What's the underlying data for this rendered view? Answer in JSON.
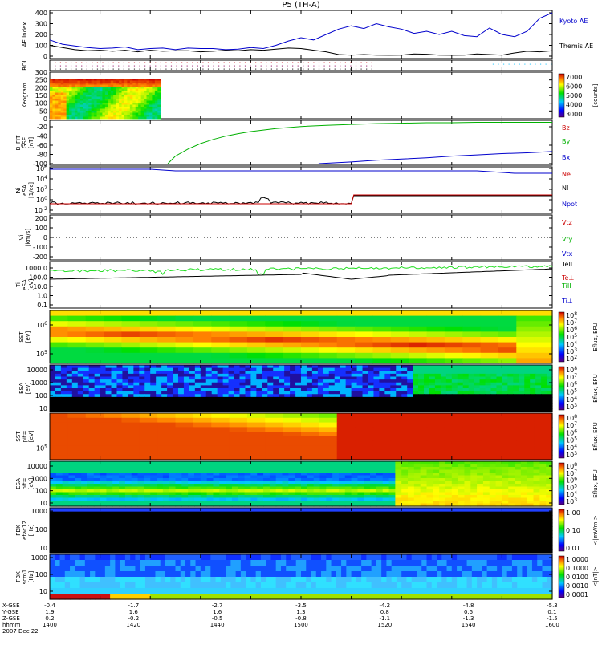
{
  "title": "P5 (TH-A)",
  "chart_data": [
    {
      "id": "ae",
      "type": "line",
      "ylabel": "AE Index",
      "yticks": [
        "400",
        "300",
        "200",
        "100",
        "0"
      ],
      "ylim": [
        0,
        400
      ],
      "series": [
        {
          "name": "Kyoto AE",
          "color": "#0000cc",
          "x": [
            1400,
            1405,
            1410,
            1415,
            1420,
            1425,
            1430,
            1435,
            1440,
            1445,
            1450,
            1455,
            1460,
            1465,
            1470,
            1475,
            1480,
            1485,
            1490,
            1495,
            1500,
            1505,
            1510,
            1515,
            1520,
            1525,
            1530,
            1535,
            1540,
            1545,
            1550,
            1555,
            1560,
            1565,
            1570,
            1575,
            1580,
            1585,
            1590,
            1595,
            1600
          ],
          "values": [
            150,
            110,
            95,
            80,
            70,
            75,
            85,
            60,
            70,
            75,
            60,
            75,
            70,
            70,
            60,
            65,
            80,
            70,
            100,
            140,
            170,
            150,
            200,
            250,
            280,
            255,
            300,
            270,
            250,
            210,
            230,
            200,
            230,
            190,
            180,
            260,
            200,
            180,
            230,
            350,
            400
          ]
        },
        {
          "name": "Themis AE",
          "color": "#000000",
          "x": [
            1400,
            1405,
            1410,
            1415,
            1420,
            1425,
            1430,
            1435,
            1440,
            1445,
            1450,
            1455,
            1460,
            1465,
            1470,
            1475,
            1480,
            1485,
            1490,
            1495,
            1500,
            1505,
            1510,
            1515,
            1520,
            1525,
            1530,
            1535,
            1540,
            1545,
            1550,
            1555,
            1560,
            1565,
            1570,
            1575,
            1580,
            1585,
            1590,
            1595,
            1600
          ],
          "values": [
            100,
            80,
            60,
            50,
            55,
            45,
            55,
            40,
            55,
            45,
            50,
            50,
            40,
            45,
            55,
            50,
            60,
            55,
            65,
            75,
            70,
            55,
            40,
            15,
            10,
            15,
            10,
            8,
            10,
            20,
            18,
            10,
            8,
            10,
            20,
            15,
            10,
            30,
            45,
            40,
            50
          ]
        }
      ]
    },
    {
      "id": "roi",
      "type": "heatmap",
      "ylabel": "ROI"
    },
    {
      "id": "keogram",
      "type": "heatmap",
      "ylabel": "Keogram",
      "yticks": [
        "300",
        "250",
        "200",
        "150",
        "100",
        "50",
        "0"
      ],
      "colorbar": {
        "label": "[counts]",
        "ticks": [
          "7000",
          "6000",
          "5000",
          "4000",
          "3000"
        ]
      }
    },
    {
      "id": "bfit",
      "type": "line",
      "ylabel": "B_FIT\n GSE\n [nT]",
      "yticks": [
        "-20",
        "-40",
        "-60",
        "-80",
        "-100"
      ],
      "ylim": [
        -100,
        0
      ],
      "series": [
        {
          "name": "Bz",
          "color": "#cc0000",
          "x": [],
          "values": []
        },
        {
          "name": "By",
          "color": "#00b000",
          "x": [
            1447,
            1450,
            1455,
            1460,
            1465,
            1470,
            1475,
            1480,
            1490,
            1500,
            1510,
            1520,
            1530,
            1540,
            1550,
            1560,
            1570,
            1580,
            1590,
            1600
          ],
          "values": [
            -100,
            -82,
            -65,
            -52,
            -42,
            -34,
            -28,
            -23,
            -16,
            -11,
            -8,
            -6,
            -4,
            -3,
            -2,
            -2,
            -1,
            -1,
            -1,
            -1
          ]
        },
        {
          "name": "Bx",
          "color": "#0000cc",
          "x": [
            1507,
            1520,
            1530,
            1540,
            1550,
            1560,
            1570,
            1580,
            1590,
            1600
          ],
          "values": [
            -100,
            -96,
            -92,
            -89,
            -86,
            -82,
            -79,
            -76,
            -74,
            -71
          ]
        }
      ]
    },
    {
      "id": "ni",
      "type": "line",
      "ylabel": "Ni\n eSA\n [1/cc]",
      "yticks": [
        "10^6",
        "10^4",
        "10^2",
        "10^0",
        "10^-2"
      ]
    },
    {
      "id": "vi",
      "type": "line",
      "ylabel": "Vi\n [km/s]",
      "yticks": [
        "200",
        "100",
        "0",
        "-100",
        "-200"
      ]
    },
    {
      "id": "ti",
      "type": "line",
      "ylabel": "Ti\n eSA\n [eV]",
      "yticks": [
        "1000.0",
        "100.0",
        "10.0",
        "1.0",
        "0.1"
      ]
    },
    {
      "id": "sst1",
      "type": "heatmap",
      "ylabel": "SST\n [eV]",
      "yticks": [
        "10^6",
        "10^5"
      ],
      "colorbar": {
        "label": "Eflux, EFU",
        "ticks": [
          "10^8",
          "10^7",
          "10^6",
          "10^5",
          "10^4",
          "10^3",
          "10^2"
        ]
      }
    },
    {
      "id": "esa1",
      "type": "heatmap",
      "ylabel": "ESA\n [eV]",
      "yticks": [
        "10000",
        "1000",
        "100",
        "10"
      ],
      "colorbar": {
        "label": "Eflux, EFU",
        "ticks": [
          "10^8",
          "10^7",
          "10^6",
          "10^5",
          "10^4",
          "10^3"
        ]
      }
    },
    {
      "id": "sst2",
      "type": "heatmap",
      "ylabel": "SST\n pit=\n [eV]",
      "yticks": [
        "10^5"
      ],
      "colorbar": {
        "label": "Eflux, EFU",
        "ticks": [
          "10^8",
          "10^7",
          "10^6",
          "10^5",
          "10^4",
          "10^3"
        ]
      }
    },
    {
      "id": "esa2",
      "type": "heatmap",
      "ylabel": "ESA\n pit=\n [eV]",
      "yticks": [
        "10000",
        "1000",
        "100",
        "10"
      ],
      "colorbar": {
        "label": "Eflux, EFU",
        "ticks": [
          "10^8",
          "10^7",
          "10^6",
          "10^5",
          "10^4",
          "10^3"
        ]
      }
    },
    {
      "id": "fbk1",
      "type": "heatmap",
      "ylabel": "FBK\n efac12\n [Hz]",
      "yticks": [
        "1000",
        "100",
        "10"
      ],
      "colorbar": {
        "label": "<|mV/m|>",
        "ticks": [
          "1.00",
          "0.10",
          "0.01"
        ]
      }
    },
    {
      "id": "fbk2",
      "type": "heatmap",
      "ylabel": "FBK\n scm1\n [Hz]",
      "yticks": [
        "1000",
        "100",
        "10"
      ],
      "colorbar": {
        "label": "<|nT|>",
        "ticks": [
          "1.0000",
          "0.1000",
          "0.0100",
          "0.0010",
          "0.0001"
        ]
      }
    }
  ],
  "legends": {
    "ae": [
      "Kyoto AE",
      "Themis AE"
    ],
    "bfit": [
      "Bz",
      "By",
      "Bx"
    ],
    "ni": [
      "Ne",
      "NI",
      "Npot"
    ],
    "vi": [
      "Vtz",
      "Vty",
      "Vtx"
    ],
    "ti": [
      "TeII",
      "Te⊥",
      "TiII",
      "Ti⊥"
    ]
  },
  "xaxis": {
    "row_labels": [
      "X-GSE",
      "Y-GSE",
      "Z-GSE",
      "hhmm",
      "2007 Dec 22"
    ],
    "ticks": [
      {
        "x": "-0.4",
        "y": "1.9",
        "z": "0.2",
        "t": "1400"
      },
      {
        "x": "-1.7",
        "y": "1.6",
        "z": "-0.2",
        "t": "1420"
      },
      {
        "x": "-2.7",
        "y": "1.6",
        "z": "-0.5",
        "t": "1440"
      },
      {
        "x": "-3.5",
        "y": "1.3",
        "z": "-0.8",
        "t": "1500"
      },
      {
        "x": "-4.2",
        "y": "0.8",
        "z": "-1.1",
        "t": "1520"
      },
      {
        "x": "-4.8",
        "y": "0.5",
        "z": "-1.3",
        "t": "1540"
      },
      {
        "x": "-5.3",
        "y": "0.1",
        "z": "-1.5",
        "t": "1600"
      }
    ]
  }
}
